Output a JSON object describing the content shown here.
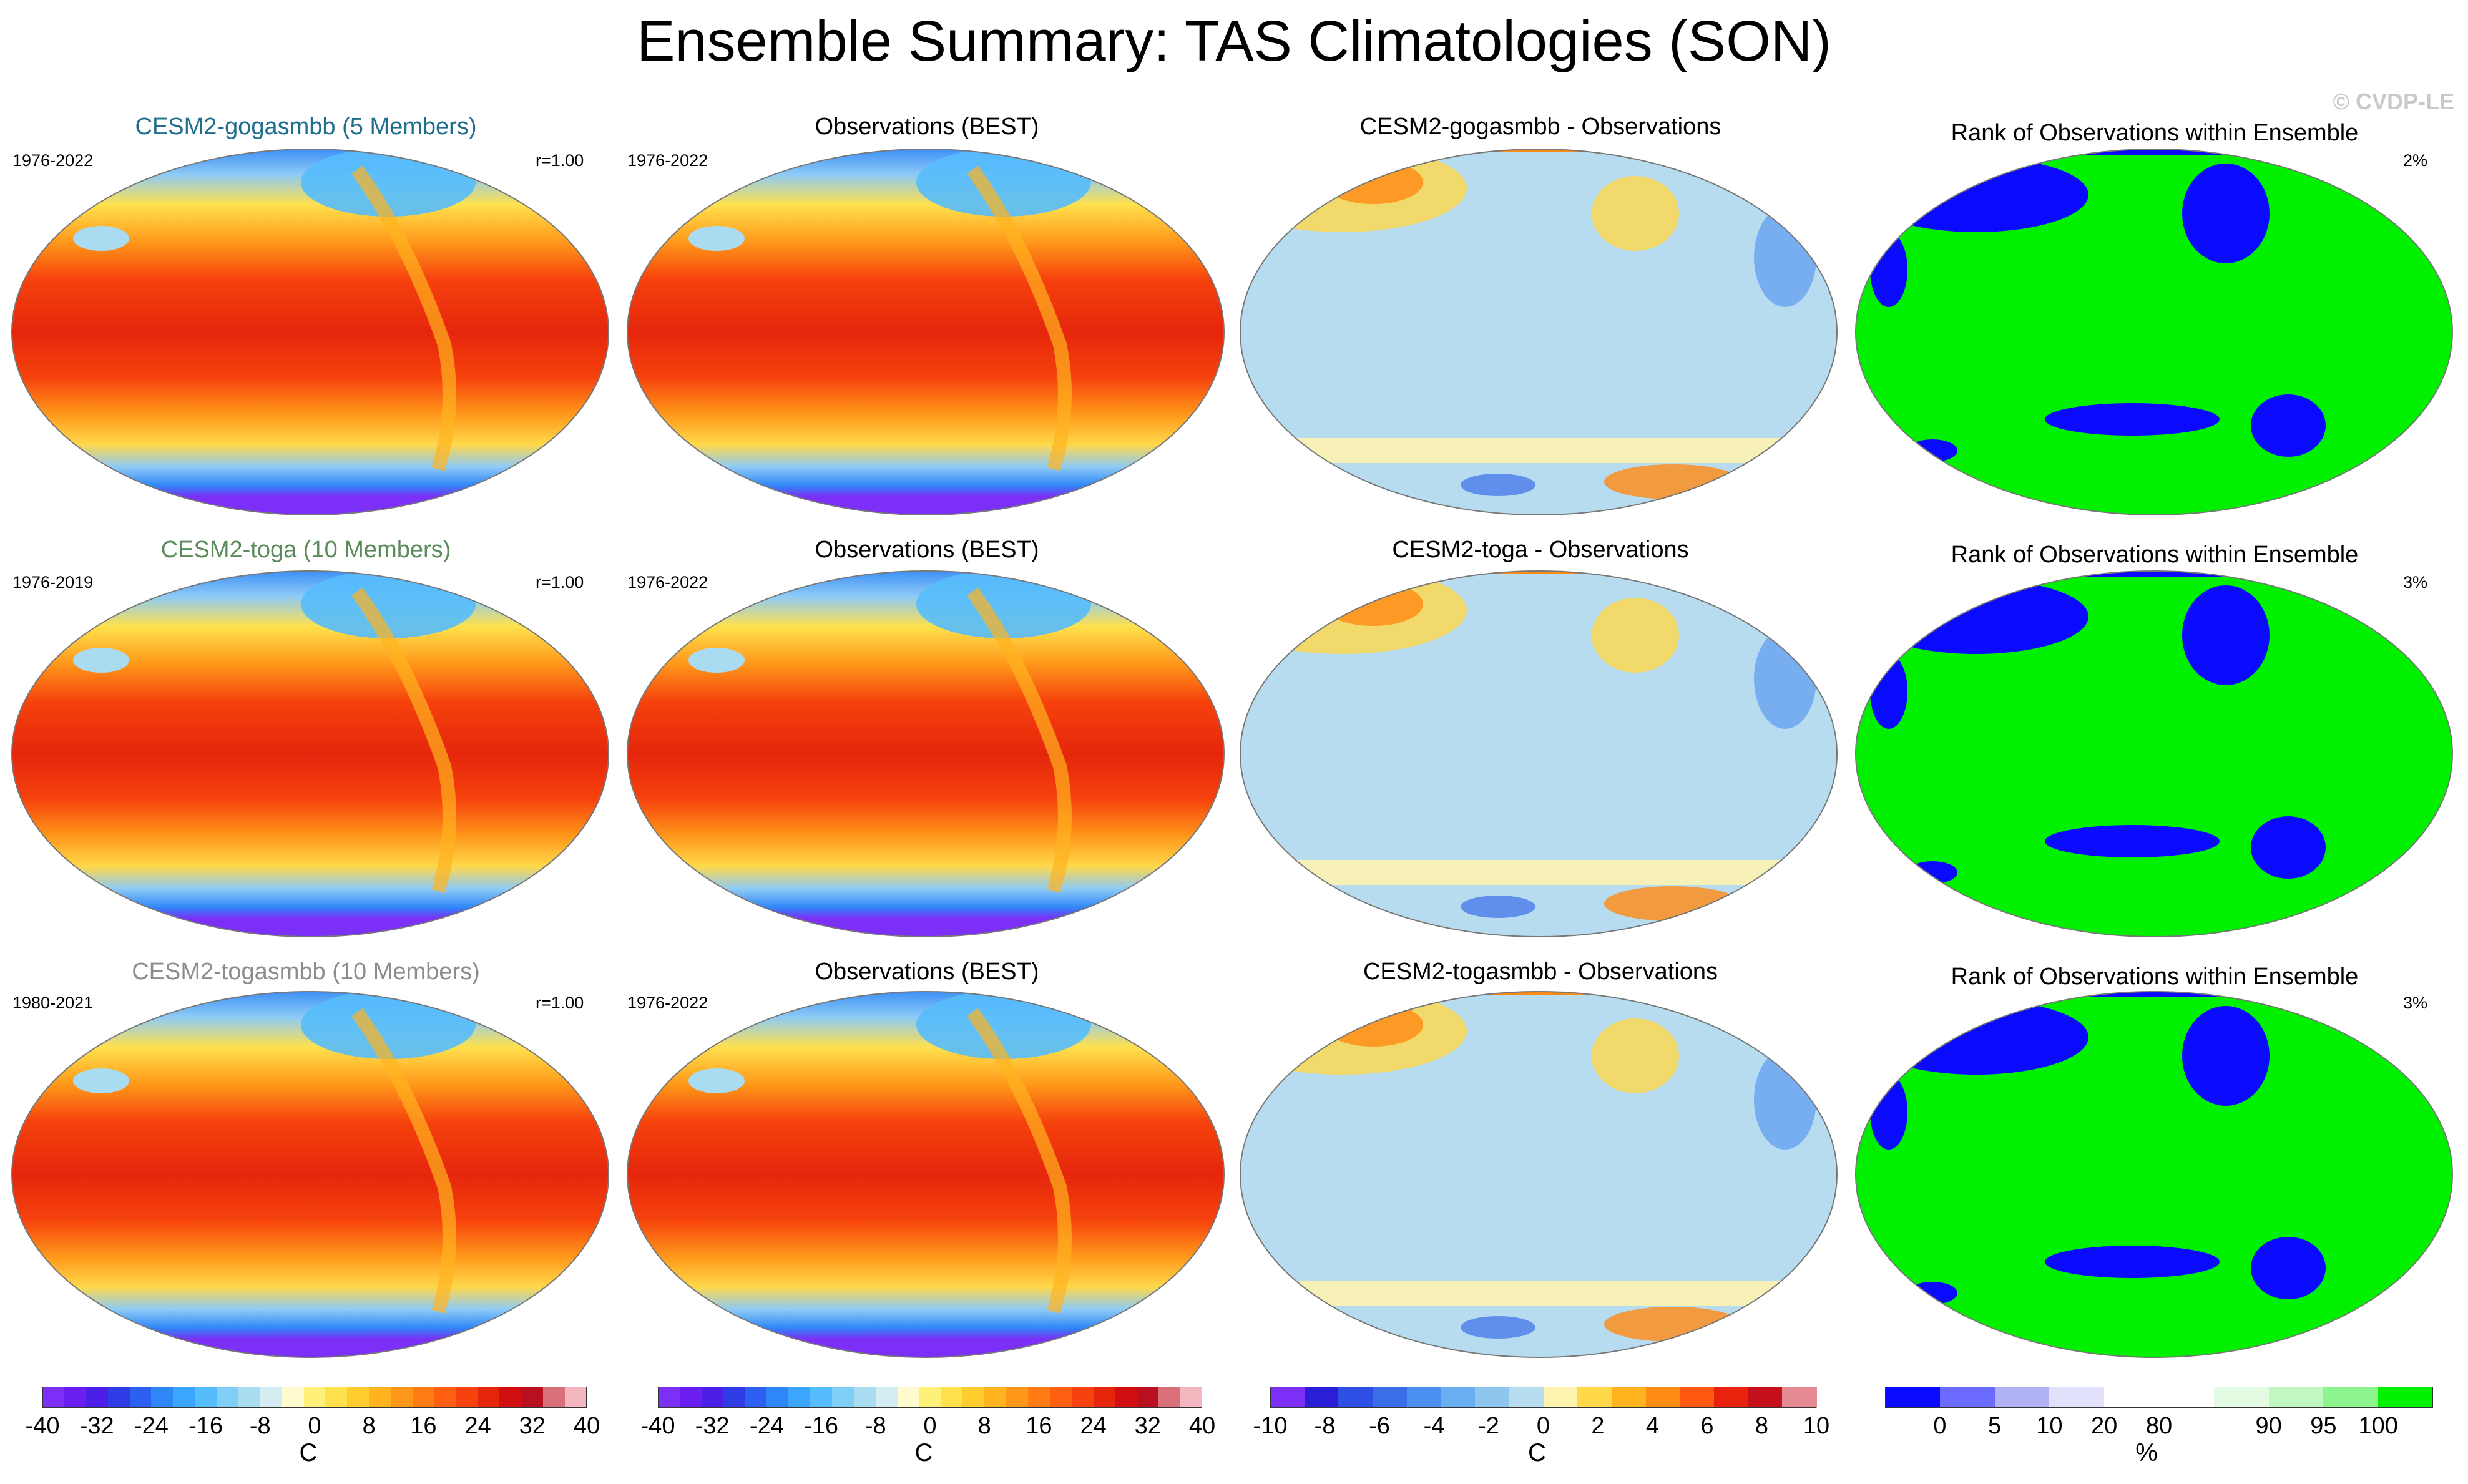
{
  "title": "Ensemble Summary: TAS Climatologies (SON)",
  "copyright": "© CVDP-LE",
  "rows": [
    {
      "model": {
        "title": "CESM2-gogasmbb (5 Members)",
        "title_color": "#1f6e8c",
        "years": "1976-2022",
        "r": "r=1.00"
      },
      "obs": {
        "title": "Observations (BEST)",
        "years": "1976-2022"
      },
      "diff": {
        "title": "CESM2-gogasmbb - Observations"
      },
      "rank": {
        "title": "Rank of Observations within Ensemble",
        "pct": "2%"
      }
    },
    {
      "model": {
        "title": "CESM2-toga (10 Members)",
        "title_color": "#5b8a5b",
        "years": "1976-2019",
        "r": "r=1.00"
      },
      "obs": {
        "title": "Observations (BEST)",
        "years": "1976-2022"
      },
      "diff": {
        "title": "CESM2-toga - Observations"
      },
      "rank": {
        "title": "Rank of Observations within Ensemble",
        "pct": "3%"
      }
    },
    {
      "model": {
        "title": "CESM2-togasmbb (10 Members)",
        "title_color": "#8c8c8c",
        "years": "1980-2021",
        "r": "r=1.00"
      },
      "obs": {
        "title": "Observations (BEST)",
        "years": "1976-2022"
      },
      "diff": {
        "title": "CESM2-togasmbb - Observations"
      },
      "rank": {
        "title": "Rank of Observations within Ensemble",
        "pct": "3%"
      }
    }
  ],
  "colorbars": [
    {
      "colors": [
        "#7b2ff7",
        "#6a1ef0",
        "#4b1fe8",
        "#2f3ce6",
        "#2d5ff0",
        "#2f86f7",
        "#3aa6ff",
        "#56bdfc",
        "#7fcff7",
        "#a9dcf1",
        "#d4edf3",
        "#fffbcf",
        "#fff07a",
        "#ffe14d",
        "#ffcd2e",
        "#ffb31f",
        "#ff981a",
        "#ff7d14",
        "#ff5f10",
        "#f6420d",
        "#e5260c",
        "#d10f10",
        "#b8101f",
        "#d9707a",
        "#f4b6bf"
      ],
      "labels": [
        "-40",
        "-32",
        "-24",
        "-16",
        "-8",
        "0",
        "8",
        "16",
        "24",
        "32",
        "40"
      ],
      "unit": "C"
    },
    {
      "colors": [
        "#7b2ff7",
        "#6a1ef0",
        "#4b1fe8",
        "#2f3ce6",
        "#2d5ff0",
        "#2f86f7",
        "#3aa6ff",
        "#56bdfc",
        "#7fcff7",
        "#a9dcf1",
        "#d4edf3",
        "#fffbcf",
        "#fff07a",
        "#ffe14d",
        "#ffcd2e",
        "#ffb31f",
        "#ff981a",
        "#ff7d14",
        "#ff5f10",
        "#f6420d",
        "#e5260c",
        "#d10f10",
        "#b8101f",
        "#d9707a",
        "#f4b6bf"
      ],
      "labels": [
        "-40",
        "-32",
        "-24",
        "-16",
        "-8",
        "0",
        "8",
        "16",
        "24",
        "32",
        "40"
      ],
      "unit": "C"
    },
    {
      "colors": [
        "#7b2ff7",
        "#2a1fd6",
        "#2d4fe3",
        "#3a6ee8",
        "#4b8ff0",
        "#6aaef2",
        "#8ec6ef",
        "#b7dcf0",
        "#fff3b0",
        "#ffd84a",
        "#ffb31f",
        "#ff8a14",
        "#ff5a10",
        "#e8220c",
        "#c4101a",
        "#e58a93"
      ],
      "labels": [
        "-10",
        "-8",
        "-6",
        "-4",
        "-2",
        "0",
        "2",
        "4",
        "6",
        "8",
        "10"
      ],
      "unit": "C"
    },
    {
      "colors": [
        "#0a0aff",
        "#6b6bff",
        "#b1b1f5",
        "#e1e1fb",
        "#ffffff",
        "#ffffff",
        "#e3fbe3",
        "#c2f7c2",
        "#8ef58e",
        "#00f000"
      ],
      "labels": [
        "0",
        "5",
        "10",
        "20",
        "80",
        "90",
        "95",
        "100"
      ],
      "unit": "%"
    }
  ]
}
